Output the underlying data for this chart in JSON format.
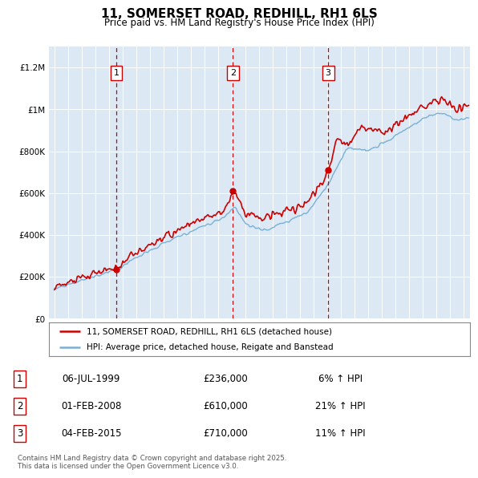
{
  "title": "11, SOMERSET ROAD, REDHILL, RH1 6LS",
  "subtitle": "Price paid vs. HM Land Registry's House Price Index (HPI)",
  "background_color": "#dce9f5",
  "ylim": [
    0,
    1300000
  ],
  "yticks": [
    0,
    200000,
    400000,
    600000,
    800000,
    1000000,
    1200000
  ],
  "ytick_labels": [
    "£0",
    "£200K",
    "£400K",
    "£600K",
    "£800K",
    "£1M",
    "£1.2M"
  ],
  "sale_dates_yr": [
    1999.54,
    2008.09,
    2015.09
  ],
  "sale_prices": [
    236000,
    610000,
    710000
  ],
  "sale_labels": [
    "1",
    "2",
    "3"
  ],
  "sale_pct": [
    "6% ↑ HPI",
    "21% ↑ HPI",
    "11% ↑ HPI"
  ],
  "sale_price_strs": [
    "£236,000",
    "£610,000",
    "£710,000"
  ],
  "sale_date_strs": [
    "06-JUL-1999",
    "01-FEB-2008",
    "04-FEB-2015"
  ],
  "line_color_price": "#cc0000",
  "line_color_hpi": "#7ab0d4",
  "legend_label_price": "11, SOMERSET ROAD, REDHILL, RH1 6LS (detached house)",
  "legend_label_hpi": "HPI: Average price, detached house, Reigate and Banstead",
  "footer": "Contains HM Land Registry data © Crown copyright and database right 2025.\nThis data is licensed under the Open Government Licence v3.0.",
  "vline_color": "#cc0000",
  "grid_color": "#ffffff",
  "xlim_left": 1994.6,
  "xlim_right": 2025.5
}
